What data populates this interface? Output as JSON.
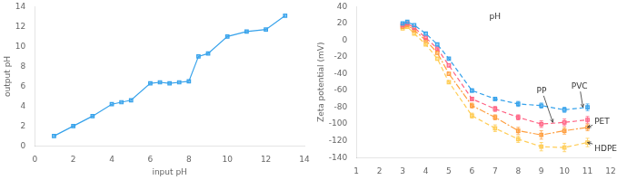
{
  "chart_data": [
    {
      "type": "line",
      "x": [
        1,
        2,
        3,
        4,
        4.5,
        5,
        6,
        6.5,
        7,
        7.5,
        8,
        8.5,
        9,
        10,
        11,
        12,
        13
      ],
      "values": [
        1,
        2,
        3,
        4.2,
        4.4,
        4.6,
        6.3,
        6.4,
        6.3,
        6.4,
        6.5,
        9.0,
        9.3,
        11.0,
        11.5,
        11.7,
        13.1
      ],
      "marker": "square",
      "line_style": "solid",
      "xlabel": "input pH",
      "ylabel": "output pH",
      "xlim": [
        0,
        14
      ],
      "ylim": [
        0,
        14
      ],
      "xticks": [
        0,
        2,
        4,
        6,
        8,
        10,
        12,
        14
      ],
      "yticks": [
        0,
        2,
        4,
        6,
        8,
        10,
        12,
        14
      ],
      "grid": false
    },
    {
      "type": "line",
      "x": [
        3.0,
        3.2,
        3.5,
        4.0,
        4.5,
        5.0,
        6.0,
        7.0,
        8.0,
        9.0,
        10.0,
        11.0
      ],
      "series": [
        {
          "name": "PVC",
          "values": [
            20,
            22,
            18,
            8,
            -5,
            -22,
            -60,
            -70,
            -76,
            -78,
            -83,
            -80
          ],
          "yerr": [
            0,
            0,
            0,
            0,
            0,
            0,
            2,
            2,
            3,
            3,
            3,
            4
          ],
          "marker": "square",
          "line_style": "dashed"
        },
        {
          "name": "PP",
          "values": [
            18,
            20,
            15,
            3,
            -10,
            -30,
            -70,
            -82,
            -92,
            -100,
            -98,
            -95
          ],
          "yerr": [
            0,
            0,
            0,
            0,
            0,
            0,
            2,
            3,
            3,
            4,
            4,
            4
          ],
          "marker": "square",
          "line_style": "dashed"
        },
        {
          "name": "PET",
          "values": [
            16,
            18,
            12,
            0,
            -15,
            -40,
            -78,
            -92,
            -108,
            -113,
            -108,
            -104
          ],
          "yerr": [
            0,
            0,
            0,
            0,
            0,
            0,
            3,
            3,
            4,
            5,
            4,
            4
          ],
          "marker": "square",
          "line_style": "dashdot"
        },
        {
          "name": "HDPE",
          "values": [
            14,
            16,
            8,
            -5,
            -22,
            -50,
            -90,
            -105,
            -118,
            -127,
            -128,
            -122
          ],
          "yerr": [
            0,
            0,
            0,
            0,
            0,
            0,
            3,
            4,
            4,
            5,
            5,
            5
          ],
          "marker": "square",
          "line_style": "dashed"
        }
      ],
      "ylabel": "Zeta potential (mV)",
      "xlim": [
        1,
        12
      ],
      "ylim": [
        -140,
        40
      ],
      "xticks": [
        1,
        2,
        3,
        4,
        5,
        6,
        7,
        8,
        9,
        10,
        11,
        12
      ],
      "yticks": [
        40,
        20,
        0,
        -20,
        -40,
        -60,
        -80,
        -100,
        -120,
        -140
      ],
      "grid": false,
      "annotations": [
        {
          "text": "pH",
          "x": 7.0,
          "y": 28
        },
        {
          "text": "PP",
          "x": 8.8,
          "y": -63,
          "arrow_x": 9.5,
          "arrow_y": -98
        },
        {
          "text": "PVC",
          "x": 10.3,
          "y": -58,
          "arrow_x": 10.8,
          "arrow_y": -80
        },
        {
          "text": "PET",
          "x": 11.3,
          "y": -100,
          "arrow_x": 11.0,
          "arrow_y": -104
        },
        {
          "text": "HDPE",
          "x": 11.3,
          "y": -132,
          "arrow_x": 11.0,
          "arrow_y": -122
        }
      ]
    }
  ]
}
